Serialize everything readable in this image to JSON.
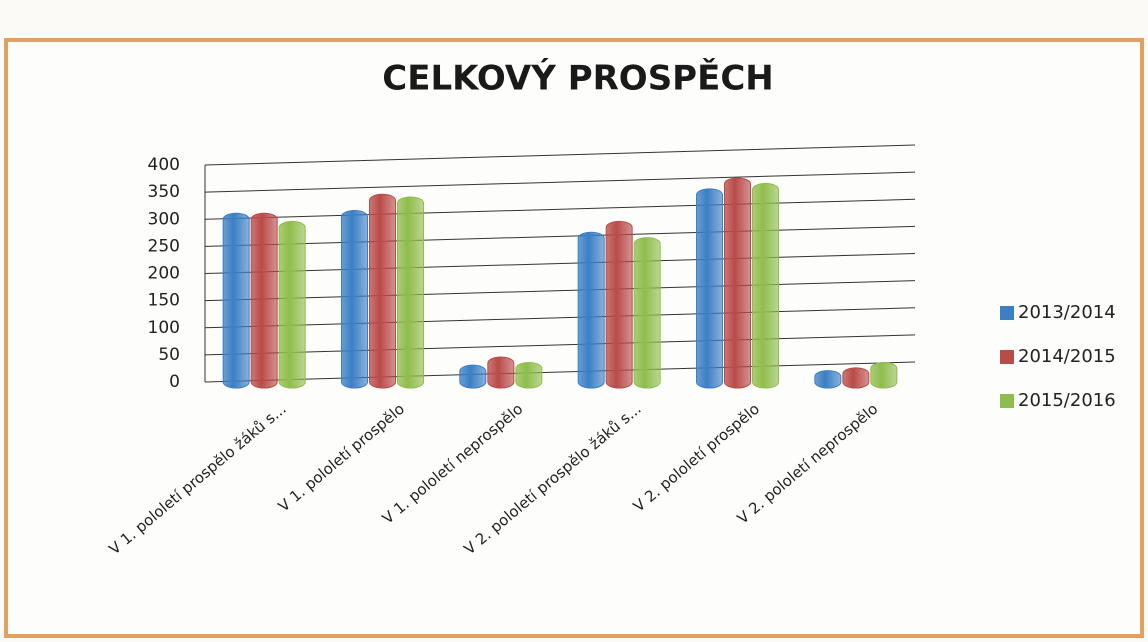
{
  "chart_data": {
    "type": "bar",
    "title": "CELKOVÝ PROSPĚCH",
    "categories": [
      "V 1. pololetí prospělo žáků s...",
      "V 1. pololetí prospělo",
      "V 1. pololetí neprospělo",
      "V 2. pololetí prospělo žáků s...",
      "V 2. pololetí prospělo",
      "V 2. pololetí neprospělo"
    ],
    "series": [
      {
        "name": "2013/2014",
        "color": "#3b7fc6",
        "values": [
          300,
          305,
          20,
          265,
          345,
          10
        ]
      },
      {
        "name": "2014/2015",
        "color": "#b94b49",
        "values": [
          300,
          335,
          35,
          285,
          365,
          15
        ]
      },
      {
        "name": "2015/2016",
        "color": "#8fbd4c",
        "values": [
          285,
          330,
          25,
          255,
          355,
          25
        ]
      }
    ],
    "ylim": [
      0,
      400
    ],
    "yticks": [
      0,
      50,
      100,
      150,
      200,
      250,
      300,
      350,
      400
    ],
    "grid": true,
    "legend": "right"
  }
}
